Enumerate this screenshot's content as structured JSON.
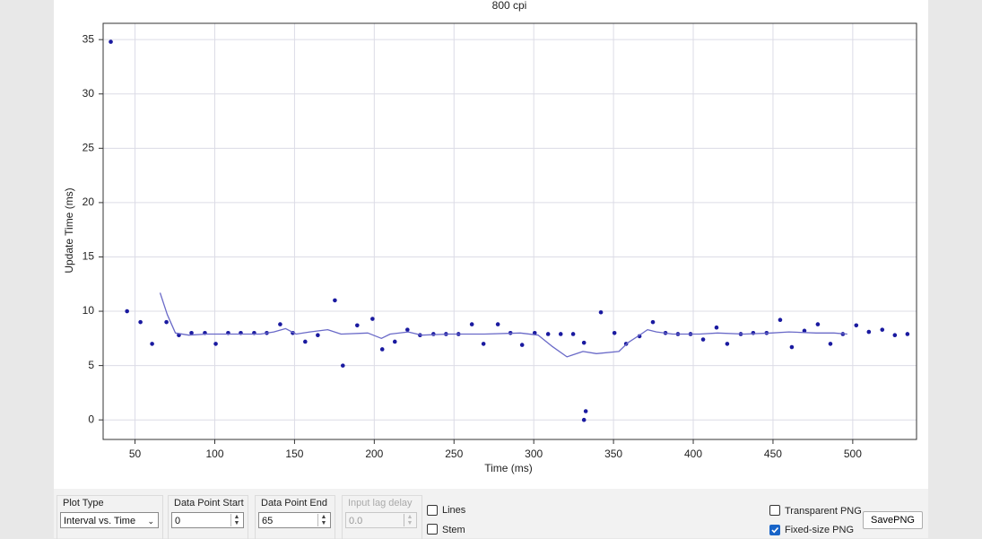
{
  "chart_data": {
    "type": "scatter",
    "title": "800 cpi",
    "x_label": "Time (ms)",
    "y_label": "Update Time (ms)",
    "xlim": [
      30,
      540
    ],
    "ylim": [
      -1.8,
      36.5
    ],
    "xticks": [
      50,
      100,
      150,
      200,
      250,
      300,
      350,
      400,
      450,
      500
    ],
    "yticks": [
      0,
      5,
      10,
      15,
      20,
      25,
      30,
      35
    ],
    "grid": true,
    "series": [
      {
        "type": "scatter",
        "color": "#1a1aa0",
        "x": [
          34.8,
          45,
          53.4,
          60.7,
          69.7,
          77.5,
          85.4,
          93.8,
          100.6,
          108.4,
          116.3,
          124.7,
          132.6,
          141,
          148.9,
          156.7,
          164.6,
          175.3,
          180.3,
          189.3,
          198.9,
          205,
          212.9,
          220.8,
          228.7,
          237.1,
          245,
          252.8,
          261.2,
          268.5,
          277.5,
          285.4,
          292.7,
          300.6,
          309,
          316.9,
          324.7,
          331.5,
          332.6,
          331.5,
          342.1,
          350.6,
          357.9,
          366.3,
          374.7,
          382.6,
          390.4,
          398.3,
          406.2,
          414.6,
          421.3,
          429.8,
          437.6,
          446,
          454.5,
          461.8,
          469.7,
          478.1,
          486,
          493.8,
          502.2,
          510.1,
          518.5,
          526.4,
          534.3
        ],
        "values": [
          34.8,
          10,
          9,
          7,
          9,
          7.8,
          8,
          8,
          7,
          8,
          8,
          8,
          8,
          8.8,
          8,
          7.2,
          7.8,
          11,
          5,
          8.7,
          9.3,
          6.5,
          7.2,
          8.3,
          7.8,
          7.9,
          7.9,
          7.9,
          8.8,
          7,
          8.8,
          8,
          6.9,
          8,
          7.9,
          7.9,
          7.9,
          7.1,
          0.8,
          0,
          9.9,
          8,
          7,
          7.7,
          9,
          8,
          7.9,
          7.9,
          7.4,
          8.5,
          7,
          7.9,
          8,
          8,
          9.2,
          6.7,
          8.2,
          8.8,
          7,
          7.9,
          8.7,
          8.1,
          8.3,
          7.8,
          7.9
        ]
      },
      {
        "type": "line",
        "color": "#6a6ac8",
        "x": [
          65.7,
          70.2,
          75.3,
          83.7,
          95,
          111.8,
          128.7,
          137,
          144.4,
          151,
          159.6,
          170.8,
          179.2,
          196,
          204.5,
          210,
          221.3,
          229.8,
          246.6,
          269.1,
          291.6,
          302.8,
          311.2,
          320.8,
          330.9,
          339.3,
          353.4,
          359,
          367.4,
          371.3,
          377,
          387.1,
          403.9,
          415.2,
          432,
          448.9,
          460,
          477,
          488.2,
          496.6
        ],
        "values": [
          11.7,
          9.7,
          8,
          7.8,
          7.9,
          7.9,
          7.9,
          8.1,
          8.4,
          7.9,
          8.1,
          8.3,
          7.9,
          8,
          7.5,
          7.9,
          8.1,
          7.8,
          7.9,
          7.9,
          8,
          7.8,
          6.8,
          5.8,
          6.3,
          6.1,
          6.3,
          7.1,
          7.9,
          8.3,
          8.1,
          7.9,
          7.9,
          8,
          7.9,
          8,
          8.1,
          8,
          8,
          7.9
        ]
      }
    ]
  },
  "controls": {
    "plot_type": {
      "label": "Plot Type",
      "value": "Interval vs. Time"
    },
    "data_point_start": {
      "label": "Data Point Start",
      "value": "0"
    },
    "data_point_end": {
      "label": "Data Point End",
      "value": "65"
    },
    "input_lag_delay": {
      "label": "Input lag delay",
      "value": "0.0"
    },
    "lines": {
      "label": "Lines",
      "checked": false
    },
    "stem": {
      "label": "Stem",
      "checked": false
    },
    "transparent_png": {
      "label": "Transparent PNG",
      "checked": false
    },
    "fixed_size_png": {
      "label": "Fixed-size PNG",
      "checked": true
    },
    "save_button": "SavePNG"
  }
}
